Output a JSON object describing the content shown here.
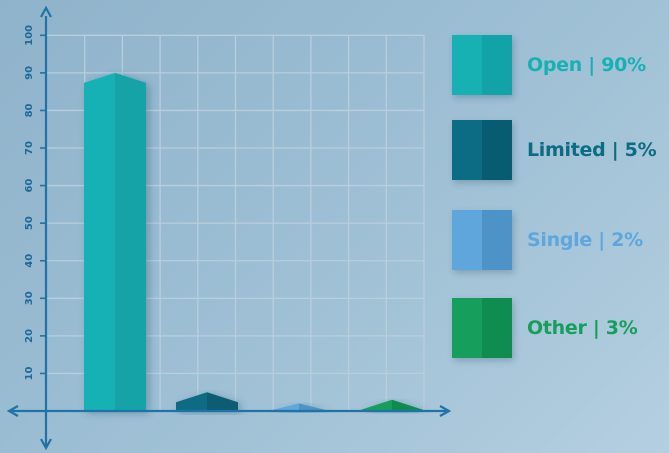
{
  "chart_data": {
    "type": "bar",
    "categories": [
      "Open",
      "Limited",
      "Single",
      "Other"
    ],
    "values": [
      90,
      5,
      2,
      3
    ],
    "colors": [
      "#17b1b4",
      "#0b6c83",
      "#5ea6dc",
      "#169f5c"
    ],
    "shade_colors": [
      "#12a3a8",
      "#085c72",
      "#4e93c8",
      "#0f8c4f"
    ],
    "ylim": [
      0,
      100
    ],
    "yticks": [
      "10",
      "20",
      "30",
      "40",
      "50",
      "60",
      "70",
      "80",
      "90",
      "100"
    ],
    "grid": true,
    "legend": [
      {
        "label": "Open | 90%",
        "color": "#17b1b4",
        "shade": "#12a3a8"
      },
      {
        "label": "Limited | 5%",
        "color": "#0b6c83",
        "shade": "#085c72"
      },
      {
        "label": "Single | 2%",
        "color": "#5ea6dc",
        "shade": "#4e93c8"
      },
      {
        "label": "Other | 3%",
        "color": "#169f5c",
        "shade": "#0f8c4f"
      }
    ],
    "legend_position": "right"
  }
}
